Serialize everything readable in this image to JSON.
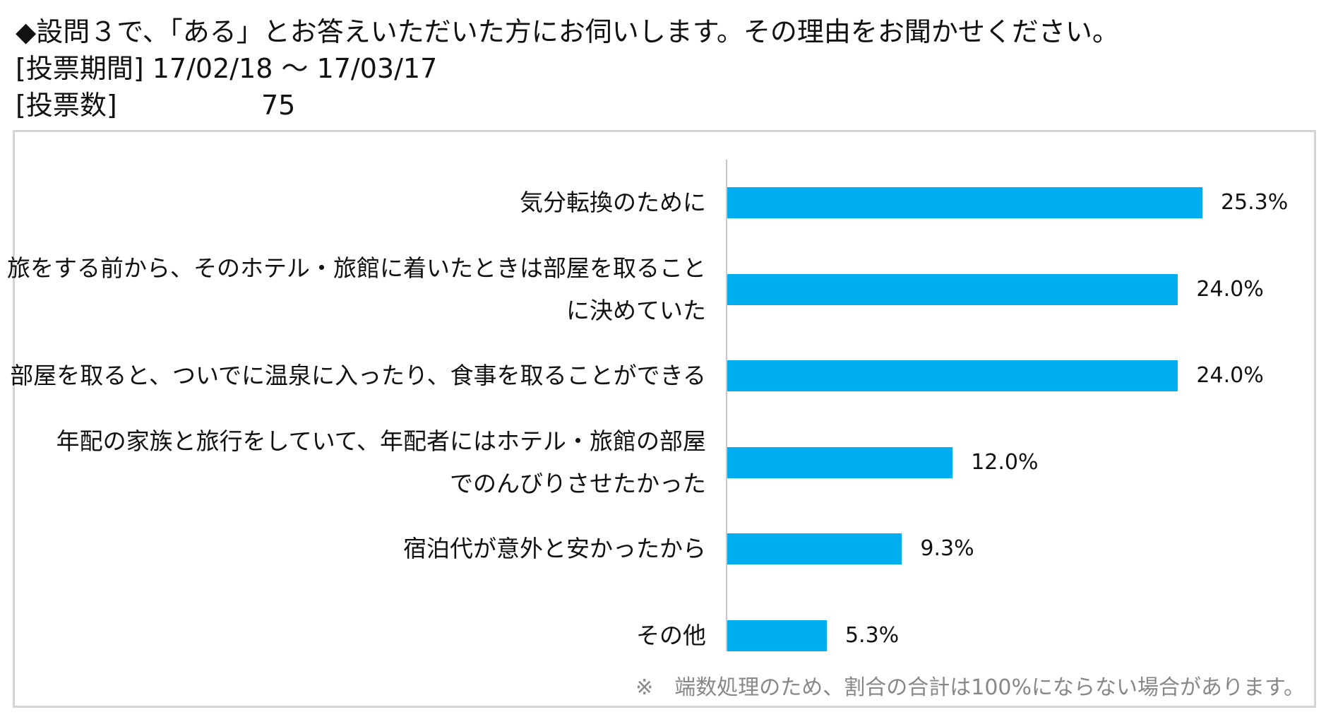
{
  "header": {
    "question": "◆設問３で、「ある」とお答えいただいた方にお伺いします。その理由をお聞かせください。",
    "period_label": "[投票期間]",
    "period_value": "17/02/18 ～ 17/03/17",
    "votes_label": "[投票数]",
    "votes_value": "75"
  },
  "chart_data": {
    "type": "bar",
    "orientation": "horizontal",
    "categories": [
      [
        "気分転換のために"
      ],
      [
        "旅をする前から、そのホテル・旅館に着いたときは部屋を取ること",
        "に決めていた"
      ],
      [
        "部屋を取ると、ついでに温泉に入ったり、食事を取ることができる"
      ],
      [
        "年配の家族と旅行をしていて、年配者にはホテル・旅館の部屋",
        "でのんびりさせたかった"
      ],
      [
        "宿泊代が意外と安かったから"
      ],
      [
        "その他"
      ]
    ],
    "values": [
      25.3,
      24.0,
      24.0,
      12.0,
      9.3,
      5.3
    ],
    "value_labels": [
      "25.3%",
      "24.0%",
      "24.0%",
      "12.0%",
      "9.3%",
      "5.3%"
    ],
    "bar_color": "#00adee",
    "grid": false
  },
  "footnote": "※　端数処理のため、割合の合計は100%にならない場合があります。"
}
